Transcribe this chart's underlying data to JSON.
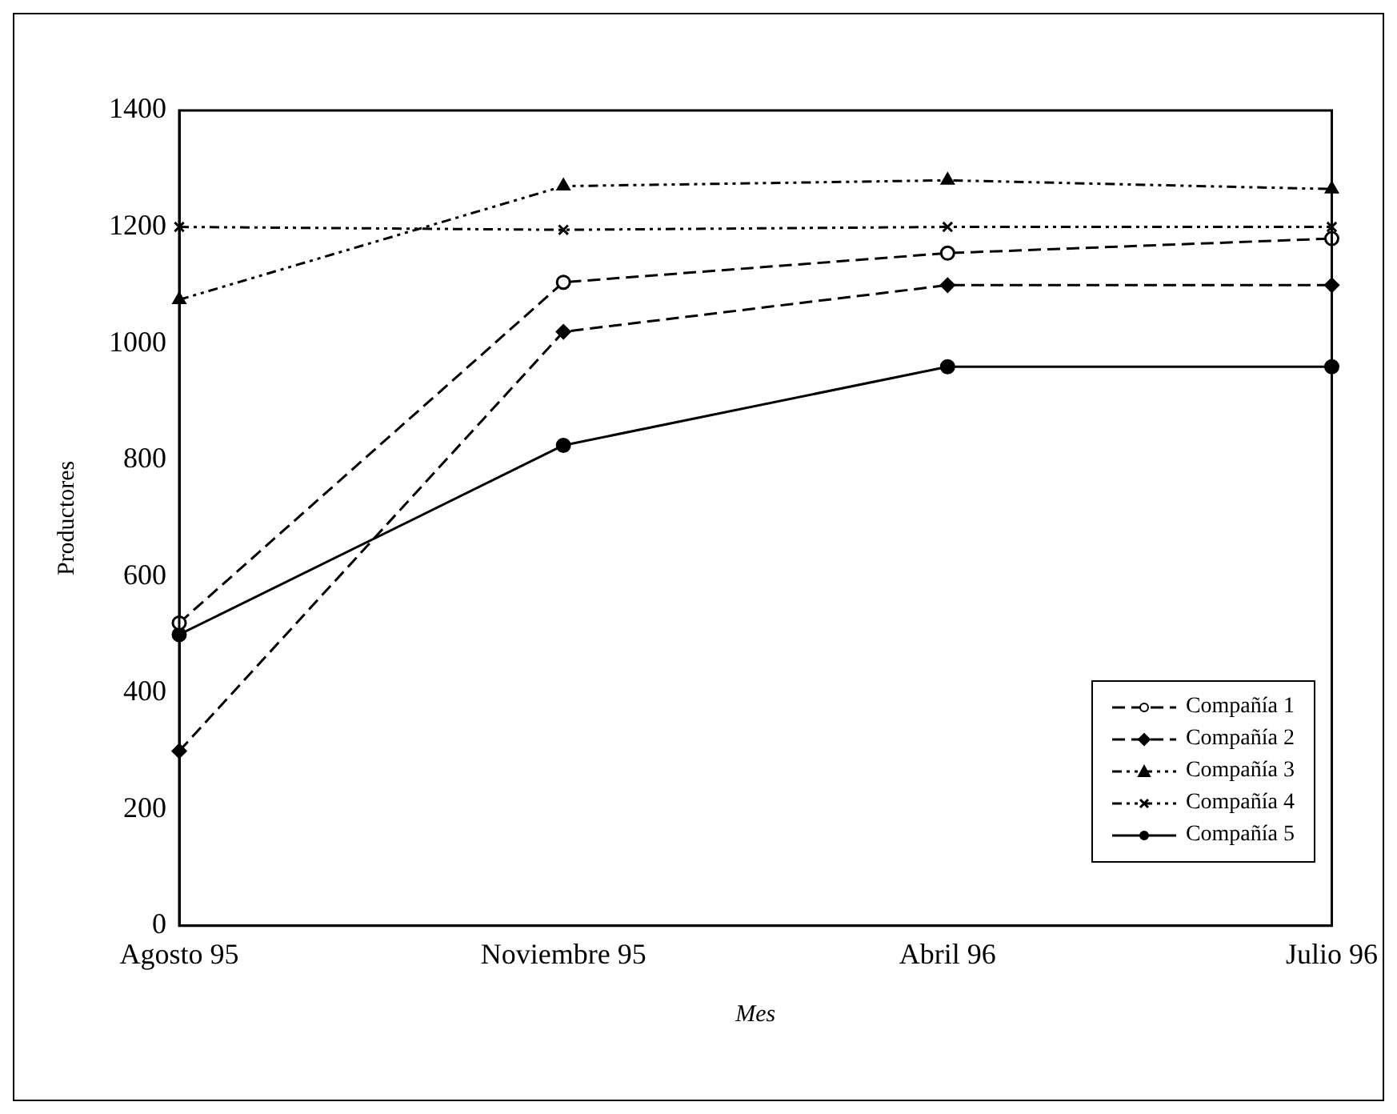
{
  "chart_data": {
    "type": "line",
    "xlabel": "Mes",
    "ylabel": "Productores",
    "categories": [
      "Agosto 95",
      "Noviembre 95",
      "Abril 96",
      "Julio 96"
    ],
    "series": [
      {
        "name": "Compañía 1",
        "color": "#000000",
        "values": [
          520,
          1105,
          1155,
          1180
        ],
        "marker": "circle",
        "line_style": "dashed"
      },
      {
        "name": "Compañía 2",
        "color": "#000000",
        "values": [
          300,
          1020,
          1100,
          1100
        ],
        "marker": "diamond",
        "line_style": "dashed"
      },
      {
        "name": "Compañía 3",
        "color": "#000000",
        "values": [
          1075,
          1270,
          1280,
          1265
        ],
        "marker": "triangle",
        "line_style": "dotted"
      },
      {
        "name": "Compañía 4",
        "color": "#000000",
        "values": [
          1200,
          1195,
          1200,
          1200
        ],
        "marker": "cross",
        "line_style": "dotted"
      },
      {
        "name": "Compañía 5",
        "color": "#000000",
        "values": [
          500,
          825,
          960,
          960
        ],
        "marker": "circle",
        "line_style": "solid"
      }
    ],
    "ylim": [
      0,
      1400
    ],
    "yticks": [
      0,
      200,
      400,
      600,
      800,
      1000,
      1200,
      1400
    ],
    "grid": false,
    "legend": "bottom right"
  }
}
